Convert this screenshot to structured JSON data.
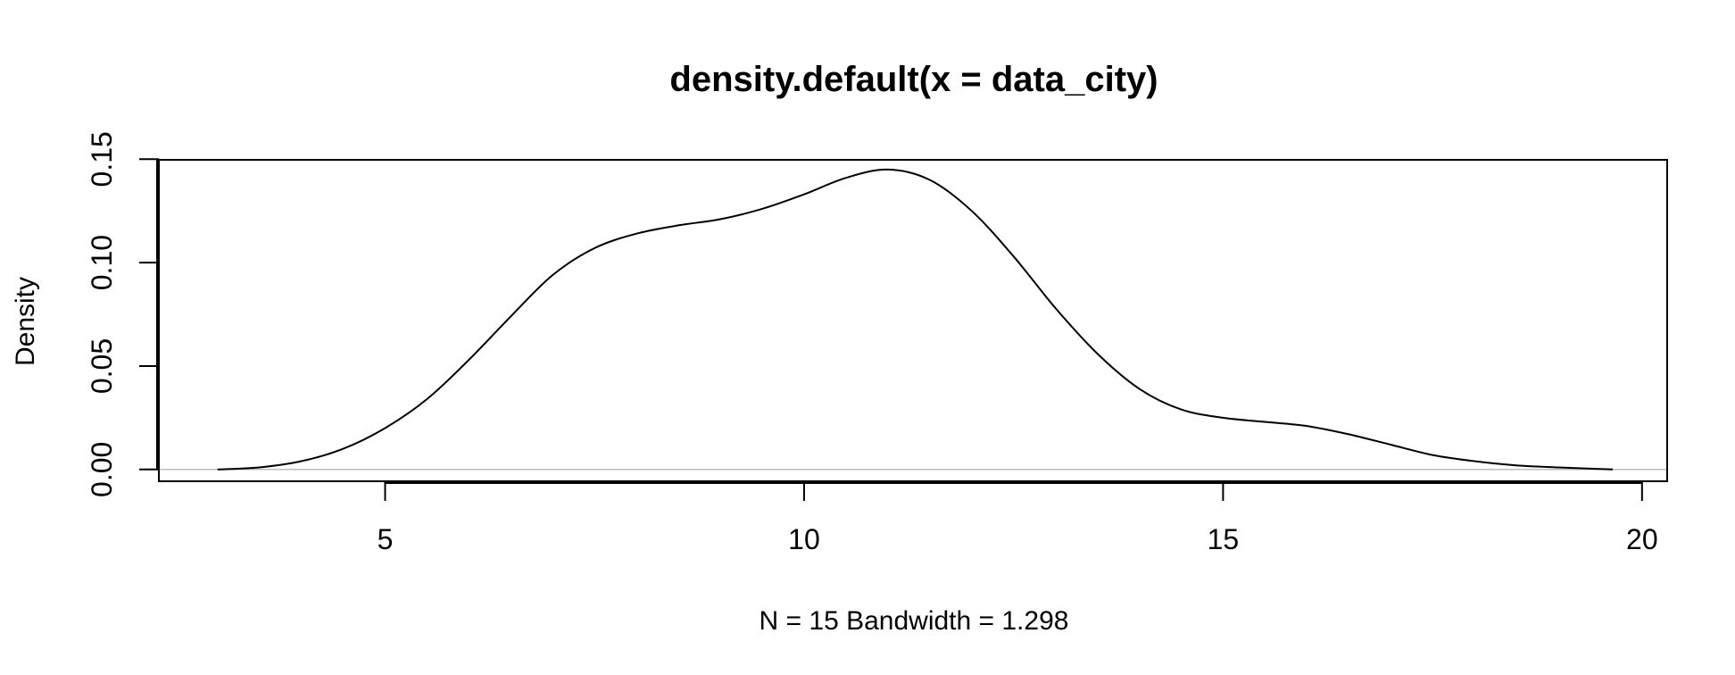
{
  "chart_data": {
    "type": "line",
    "title": "density.default(x = data_city)",
    "xlabel": "N = 15   Bandwidth = 1.298",
    "ylabel": "Density",
    "xlim": [
      2.3,
      20.3
    ],
    "ylim": [
      -0.0057,
      0.1497
    ],
    "xticks": [
      5,
      10,
      15,
      20
    ],
    "xtick_labels": [
      "5",
      "10",
      "15",
      "20"
    ],
    "yticks": [
      0.0,
      0.05,
      0.1,
      0.15
    ],
    "ytick_labels": [
      "0.00",
      "0.05",
      "0.10",
      "0.15"
    ],
    "grid": false,
    "baseline": 0,
    "line_color": "#000000",
    "baseline_color": "#bebebe",
    "series": [
      {
        "x": [
          3.0,
          3.5,
          4.0,
          4.5,
          5.0,
          5.5,
          6.0,
          6.5,
          7.0,
          7.5,
          8.0,
          8.5,
          9.0,
          9.5,
          10.0,
          10.5,
          11.0,
          11.5,
          12.0,
          12.5,
          13.0,
          13.5,
          14.0,
          14.5,
          15.0,
          15.5,
          16.0,
          16.5,
          17.0,
          17.5,
          18.0,
          18.5,
          19.0,
          19.65
        ],
        "y": [
          0.0,
          0.001,
          0.004,
          0.01,
          0.02,
          0.034,
          0.053,
          0.074,
          0.094,
          0.107,
          0.114,
          0.118,
          0.121,
          0.126,
          0.133,
          0.141,
          0.145,
          0.14,
          0.125,
          0.103,
          0.078,
          0.056,
          0.039,
          0.029,
          0.025,
          0.023,
          0.021,
          0.017,
          0.012,
          0.007,
          0.004,
          0.002,
          0.001,
          0.0
        ]
      }
    ]
  }
}
